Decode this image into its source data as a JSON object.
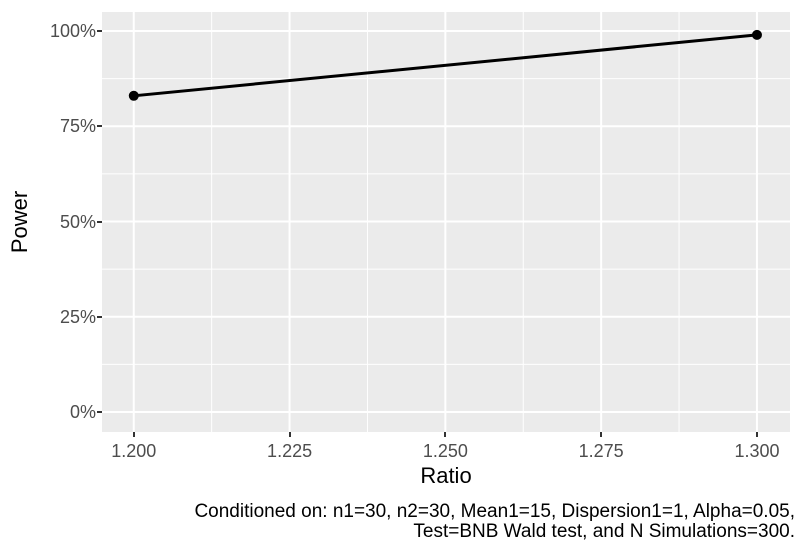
{
  "theme": {
    "background": "#FFFFFF",
    "panel_fill": "#EBEBEB",
    "grid_color": "#FFFFFF",
    "tick_mark_color": "#333333",
    "tick_label_color": "#4D4D4D",
    "title_color": "#000000",
    "caption_color": "#000000",
    "series_color": "#000000"
  },
  "chart_data": {
    "type": "line",
    "title": "",
    "xlabel": "Ratio",
    "ylabel": "Power",
    "xlim": [
      1.1949,
      1.3053
    ],
    "ylim": [
      -5.25,
      105.0
    ],
    "grid": true,
    "legend": "none",
    "x_ticks": {
      "values": [
        1.2,
        1.225,
        1.25,
        1.275,
        1.3
      ],
      "labels": [
        "1.200",
        "1.225",
        "1.250",
        "1.275",
        "1.300"
      ]
    },
    "y_ticks": {
      "values": [
        0,
        25,
        50,
        75,
        100
      ],
      "labels": [
        "0%",
        "25%",
        "50%",
        "75%",
        "100%"
      ]
    },
    "x_minor": [
      1.2125,
      1.2375,
      1.2625,
      1.2875
    ],
    "y_minor": [
      12.5,
      37.5,
      62.5,
      87.5
    ],
    "series": [
      {
        "name": "Power",
        "x": [
          1.2,
          1.3
        ],
        "y": [
          83,
          99
        ]
      }
    ],
    "caption_lines": [
      "Conditioned on: n1=30, n2=30, Mean1=15, Dispersion1=1, Alpha=0.05,",
      "Test=BNB Wald test, and N Simulations=300."
    ]
  }
}
